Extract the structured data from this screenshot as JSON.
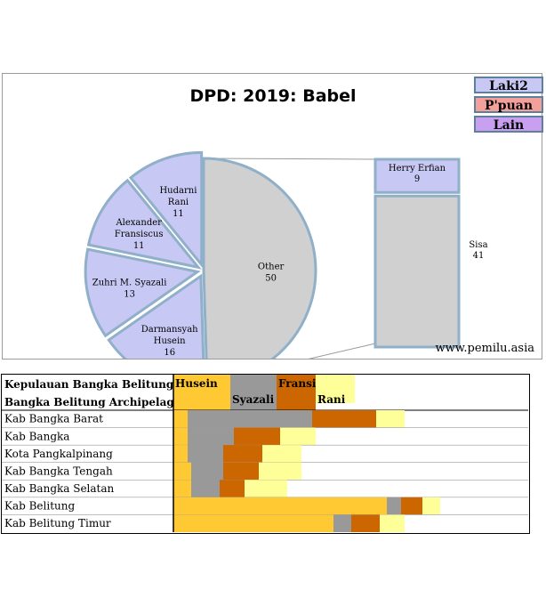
{
  "title": "DPD: 2019: Babel",
  "source": "www.pemilu.asia",
  "legend": [
    {
      "label": "Laki2",
      "color": "#c8c8f4"
    },
    {
      "label": "P'puan",
      "color": "#f4a09a"
    },
    {
      "label": "Lain",
      "color": "#c9a0f0"
    }
  ],
  "chart_data": [
    {
      "type": "pie",
      "title": "DPD: 2019: Babel",
      "slices": [
        {
          "name": "Other",
          "value": 50,
          "color": "#d0d0d0"
        },
        {
          "name": "Darmansyah Husein",
          "lines": [
            "Darmansyah",
            "Husein"
          ],
          "value": 16,
          "color": "#c8c8f4"
        },
        {
          "name": "Zuhri M. Syazali",
          "lines": [
            "Zuhri M. Syazali"
          ],
          "value": 13,
          "color": "#c8c8f4"
        },
        {
          "name": "Alexander Fransiscus",
          "lines": [
            "Alexander",
            "Fransiscus"
          ],
          "value": 11,
          "color": "#c8c8f4"
        },
        {
          "name": "Hudarni Rani",
          "lines": [
            "Hudarni",
            "Rani"
          ],
          "value": 11,
          "color": "#c8c8f4"
        }
      ],
      "breakout": {
        "of": "Other",
        "segments": [
          {
            "name": "Herry Erfian",
            "value": 9,
            "color": "#c8c8f4"
          },
          {
            "name": "Sisa",
            "value": 41,
            "color": "#d0d0d0"
          }
        ]
      }
    },
    {
      "type": "bar",
      "stacked": true,
      "header": [
        "Kepulauan Bangka Belitung",
        "Bangka Belitung Archipelago"
      ],
      "series": [
        {
          "name": "Husein",
          "color": "#ffc933"
        },
        {
          "name": "Syazali",
          "color": "#999999"
        },
        {
          "name": "Fransiscus",
          "color": "#cc6600"
        },
        {
          "name": "Rani",
          "color": "#ffff99"
        }
      ],
      "header_values": [
        16,
        13,
        11,
        11
      ],
      "categories": [
        "Kab Bangka Barat",
        "Kab Bangka",
        "Kota Pangkalpinang",
        "Kab Bangka Tengah",
        "Kab Bangka Selatan",
        "Kab Belitung",
        "Kab Belitung Timur"
      ],
      "rows": [
        [
          4,
          35,
          18,
          8
        ],
        [
          4,
          13,
          13,
          10
        ],
        [
          4,
          10,
          11,
          11
        ],
        [
          5,
          9,
          10,
          12
        ],
        [
          5,
          8,
          7,
          12
        ],
        [
          60,
          4,
          6,
          5
        ],
        [
          45,
          5,
          8,
          7
        ]
      ]
    }
  ]
}
